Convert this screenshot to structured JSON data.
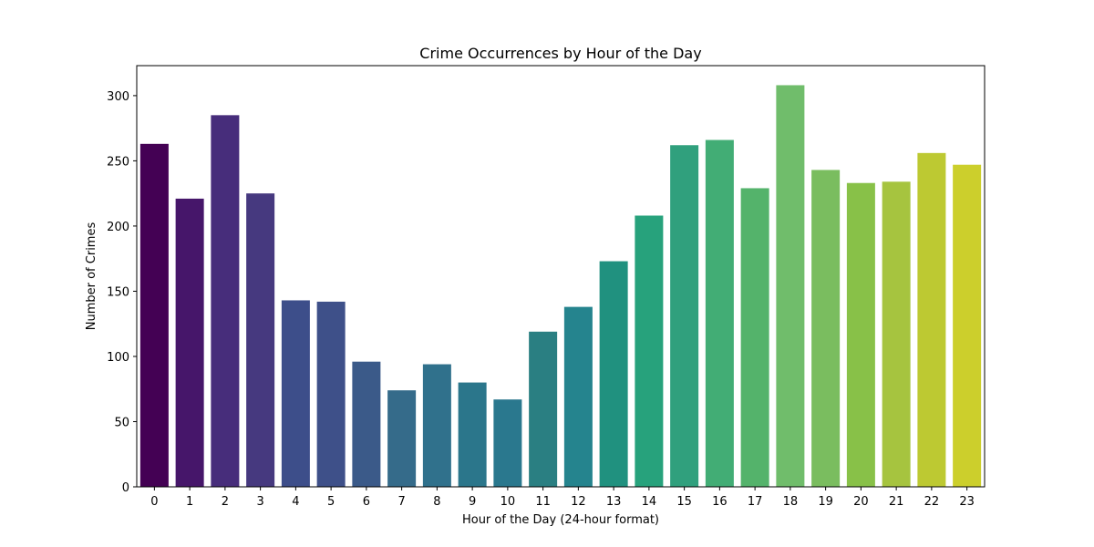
{
  "chart_data": {
    "type": "bar",
    "title": "Crime Occurrences by Hour of the Day",
    "xlabel": "Hour of the Day (24-hour format)",
    "ylabel": "Number of Crimes",
    "categories": [
      "0",
      "1",
      "2",
      "3",
      "4",
      "5",
      "6",
      "7",
      "8",
      "9",
      "10",
      "11",
      "12",
      "13",
      "14",
      "15",
      "16",
      "17",
      "18",
      "19",
      "20",
      "21",
      "22",
      "23"
    ],
    "values": [
      263,
      221,
      285,
      225,
      143,
      142,
      96,
      74,
      94,
      80,
      67,
      119,
      138,
      173,
      208,
      262,
      266,
      229,
      308,
      243,
      233,
      234,
      256,
      247
    ],
    "ylim": [
      0,
      323
    ],
    "yticks": [
      0,
      50,
      100,
      150,
      200,
      250,
      300
    ],
    "grid": false,
    "colors": [
      "#440154",
      "#46166a",
      "#472d7b",
      "#46397f",
      "#3d4e8a",
      "#3e5089",
      "#3b5a89",
      "#356b8a",
      "#30718c",
      "#2b768b",
      "#2a788e",
      "#2a7f82",
      "#25848e",
      "#20917f",
      "#27a27c",
      "#30a07d",
      "#42ad75",
      "#54b36b",
      "#70bd6b",
      "#7abd5f",
      "#88c148",
      "#a6c43f",
      "#bdc932",
      "#cccf2c"
    ]
  }
}
